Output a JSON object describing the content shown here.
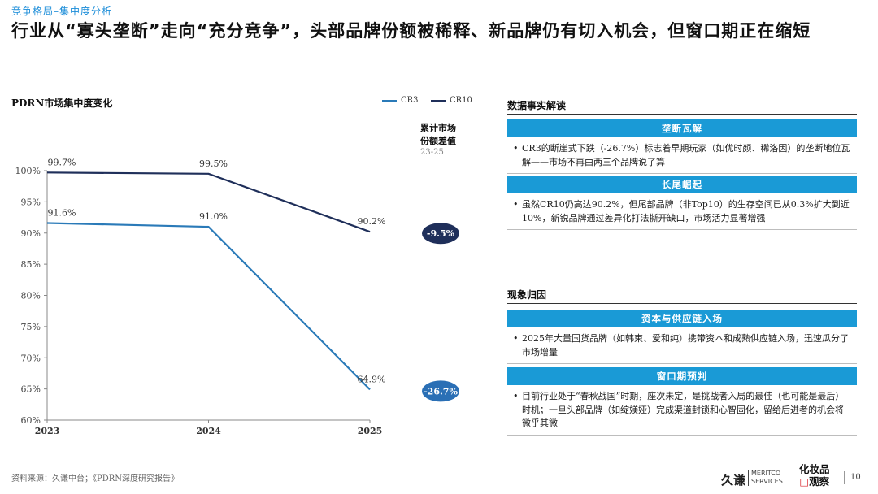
{
  "breadcrumb": {
    "section": "竞争格局",
    "sep": "–",
    "page": "集中度分析"
  },
  "headline": "行业从“寡头垄断”走向“充分竞争”，头部品牌份额被稀释、新品牌仍有切入机会，但窗口期正在缩短",
  "chart_data": {
    "type": "line",
    "title": "PDRN市场集中度变化",
    "categories": [
      "2023",
      "2024",
      "2025"
    ],
    "series": [
      {
        "name": "CR3",
        "values": [
          91.6,
          91.0,
          64.9
        ],
        "labels": [
          "91.6%",
          "91.0%",
          "64.9%"
        ],
        "color": "#2a7ab8"
      },
      {
        "name": "CR10",
        "values": [
          99.7,
          99.5,
          90.2
        ],
        "labels": [
          "99.7%",
          "99.5%",
          "90.2%"
        ],
        "color": "#1f2f5a"
      }
    ],
    "ylim": [
      60,
      100
    ],
    "yticks": [
      60,
      65,
      70,
      75,
      80,
      85,
      90,
      95,
      100
    ],
    "ytick_labels": [
      "60%",
      "65%",
      "70%",
      "75%",
      "80%",
      "85%",
      "90%",
      "95%",
      "100%"
    ],
    "gap_header": [
      "累计市场",
      "份额差值"
    ],
    "gap_period": "23-25",
    "gap_badges": [
      {
        "series": "CR10",
        "label": "-9.5%",
        "color": "#1f2f5a"
      },
      {
        "series": "CR3",
        "label": "-26.7%",
        "color": "#2a6fb5"
      }
    ]
  },
  "facts": {
    "title": "数据事实解读",
    "items": [
      {
        "heading": "垄断瓦解",
        "text": "CR3的断崖式下跌（-26.7%）标志着早期玩家（如优时颜、稀洛因）的垄断地位瓦解——市场不再由两三个品牌说了算"
      },
      {
        "heading": "长尾崛起",
        "text": "虽然CR10仍高达90.2%，但尾部品牌（非Top10）的生存空间已从0.3%扩大到近10%，新锐品牌通过差异化打法撕开缺口，市场活力显著增强"
      }
    ]
  },
  "causes": {
    "title": "现象归因",
    "items": [
      {
        "heading": "资本与供应链入场",
        "text": "2025年大量国货品牌（如韩束、爱和纯）携带资本和成熟供应链入场，迅速瓜分了市场增量"
      },
      {
        "heading": "窗口期预判",
        "text": "目前行业处于“春秋战国”时期，座次未定，是挑战者入局的最佳（也可能是最后）时机；一旦头部品牌（如绽媄娅）完成渠道封锁和心智固化，留给后进者的机会将微乎其微"
      }
    ]
  },
  "footer": {
    "source": "资料来源：久谦中台；《PDRN深度研究报告》",
    "logo_jq": "久谦",
    "logo_meritco": [
      "MERITCO",
      "SERVICES"
    ],
    "logo_hzp": [
      "化妆品",
      "观察"
    ],
    "page": "10"
  }
}
